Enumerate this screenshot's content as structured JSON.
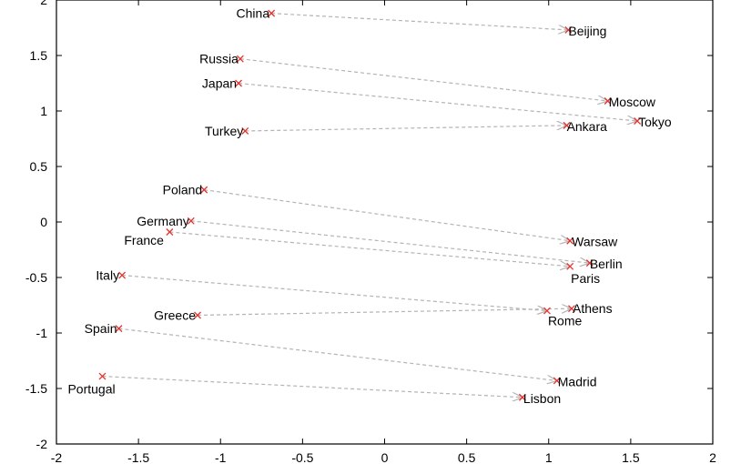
{
  "chart_data": {
    "type": "scatter",
    "title": "",
    "xlabel": "",
    "ylabel": "",
    "xlim": [
      -2,
      2
    ],
    "ylim": [
      -2,
      2
    ],
    "x_ticks": [
      "-2",
      "-1.5",
      "-1",
      "-0.5",
      "0",
      "0.5",
      "1",
      "1.5",
      "2"
    ],
    "y_ticks": [
      "2",
      "1.5",
      "1",
      "0.5",
      "0",
      "-0.5",
      "-1",
      "-1.5",
      "-2"
    ],
    "grid": false,
    "marker_color": "#e8322e",
    "arrow_color": "#b4b4b4",
    "pairs": [
      {
        "country": "China",
        "cx": -0.69,
        "cy": 1.88,
        "capital": "Beijing",
        "px": 1.12,
        "py": 1.73
      },
      {
        "country": "Russia",
        "cx": -0.88,
        "cy": 1.47,
        "capital": "Moscow",
        "px": 1.36,
        "py": 1.09
      },
      {
        "country": "Japan",
        "cx": -0.89,
        "cy": 1.25,
        "capital": "Tokyo",
        "px": 1.54,
        "py": 0.91
      },
      {
        "country": "Turkey",
        "cx": -0.85,
        "cy": 0.82,
        "capital": "Ankara",
        "px": 1.11,
        "py": 0.87
      },
      {
        "country": "Poland",
        "cx": -1.1,
        "cy": 0.29,
        "capital": "Warsaw",
        "px": 1.13,
        "py": -0.17
      },
      {
        "country": "Germany",
        "cx": -1.18,
        "cy": 0.01,
        "capital": "Berlin",
        "px": 1.25,
        "py": -0.37
      },
      {
        "country": "France",
        "cx": -1.31,
        "cy": -0.09,
        "capital": "Paris",
        "px": 1.13,
        "py": -0.4
      },
      {
        "country": "Italy",
        "cx": -1.6,
        "cy": -0.48,
        "capital": "Rome",
        "px": 0.99,
        "py": -0.8
      },
      {
        "country": "Greece",
        "cx": -1.14,
        "cy": -0.84,
        "capital": "Athens",
        "px": 1.14,
        "py": -0.78
      },
      {
        "country": "Spain",
        "cx": -1.62,
        "cy": -0.96,
        "capital": "Madrid",
        "px": 1.05,
        "py": -1.43
      },
      {
        "country": "Portugal",
        "cx": -1.72,
        "cy": -1.39,
        "capital": "Lisbon",
        "px": 0.84,
        "py": -1.58
      }
    ]
  }
}
